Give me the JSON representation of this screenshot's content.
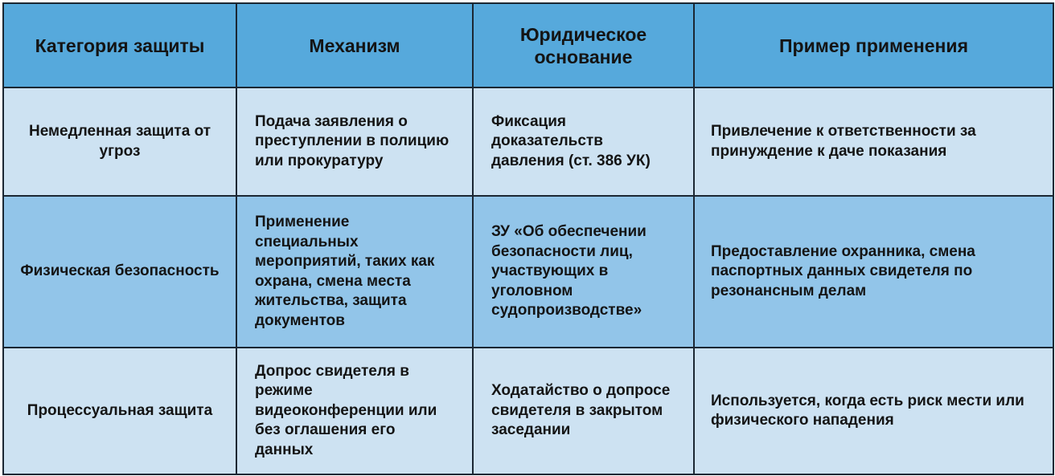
{
  "table": {
    "headers": [
      "Категория защиты",
      "Механизм",
      "Юридическое основание",
      "Пример применения"
    ],
    "rows": [
      [
        "Немедленная защита от угроз",
        "Подача заявления о преступлении в полицию или прокуратуру",
        "Фиксация доказательств давления (ст. 386 УК)",
        "Привлечение к ответственности за принуждение к даче показания"
      ],
      [
        "Физическая безопасность",
        "Применение специальных мероприятий, таких как охрана, смена места жительства, защита документов",
        "ЗУ «Об обеспечении безопасности лиц, участвующих в уголовном судопроизводстве»",
        "Предоставление охранника, смена паспортных данных свидетеля по резонансным делам"
      ],
      [
        "Процессуальная защита",
        "Допрос свидетеля в режиме видеоконференции или без оглашения его данных",
        "Ходатайство о допросе свидетеля в закрытом заседании",
        "Используется, когда есть риск мести или физического нападения"
      ]
    ]
  },
  "colors": {
    "header": "#56a9dc",
    "row_light": "#cde2f2",
    "row_dark": "#92c5e9",
    "border": "#1b2733"
  }
}
